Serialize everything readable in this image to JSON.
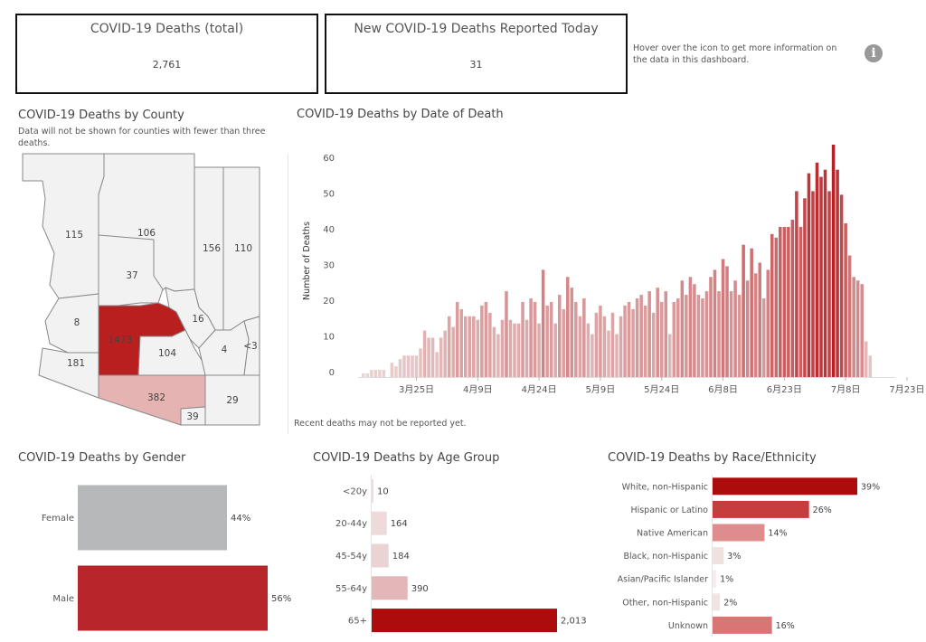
{
  "kpis": {
    "total_title": "COVID-19 Deaths (total)",
    "total_value": "2,761",
    "today_title": "New COVID-19 Deaths Reported Today",
    "today_value": "31"
  },
  "info": {
    "hover_text": "Hover over the icon to get more information on the data in this dashboard.",
    "icon": "info-icon",
    "icon_glyph": "i"
  },
  "county": {
    "title": "COVID-19 Deaths by County",
    "note": "Data will not be shown for counties with fewer than three deaths.",
    "labels": {
      "mohave": "115",
      "coconino": "106",
      "navajo": "156",
      "apache": "110",
      "yavapai": "37",
      "la_paz": "8",
      "maricopa": "1473",
      "gila": "16",
      "pinal": "104",
      "graham": "4",
      "greenlee": "<3",
      "yuma": "181",
      "pima": "382",
      "santa_cruz": "39",
      "cochise": "29"
    },
    "colors": {
      "maricopa": "#b82020",
      "pima": "#e6b3b3",
      "other": "#f2f2f2",
      "border": "#888888"
    }
  },
  "chart_data": [
    {
      "type": "bar",
      "title": "COVID-19 Deaths by Date of Death",
      "ylabel": "Number of Deaths",
      "ylim": [
        0,
        65
      ],
      "yticks": [
        "0",
        "10",
        "20",
        "30",
        "40",
        "50",
        "60"
      ],
      "xtick_labels": [
        "3月25日",
        "4月9日",
        "4月24日",
        "5月9日",
        "5月24日",
        "6月8日",
        "6月23日",
        "7月8日",
        "7月23日"
      ],
      "start_date": "3月12日",
      "values": [
        1,
        1,
        2,
        2,
        2,
        2,
        0,
        4,
        3,
        5,
        6,
        6,
        6,
        6,
        8,
        13,
        11,
        11,
        7,
        11,
        13,
        17,
        14,
        21,
        19,
        17,
        17,
        17,
        16,
        20,
        21,
        18,
        14,
        12,
        16,
        24,
        16,
        15,
        15,
        21,
        16,
        22,
        21,
        15,
        30,
        20,
        21,
        15,
        23,
        19,
        28,
        25,
        21,
        17,
        22,
        15,
        12,
        18,
        20,
        17,
        13,
        18,
        12,
        17,
        20,
        21,
        19,
        22,
        23,
        20,
        24,
        18,
        25,
        21,
        24,
        12,
        21,
        22,
        27,
        23,
        28,
        26,
        23,
        22,
        24,
        28,
        30,
        24,
        33,
        31,
        24,
        27,
        23,
        37,
        27,
        36,
        29,
        32,
        22,
        30,
        40,
        39,
        42,
        42,
        42,
        44,
        52,
        42,
        50,
        57,
        52,
        60,
        56,
        58,
        52,
        65,
        58,
        51,
        43,
        34,
        28,
        27,
        26,
        10,
        6
      ],
      "note": "Recent deaths may not be reported yet."
    },
    {
      "type": "bar",
      "orientation": "horizontal",
      "title": "COVID-19 Deaths by Gender",
      "categories": [
        "Female",
        "Male"
      ],
      "values": [
        44,
        56
      ],
      "labels": [
        "44%",
        "56%"
      ],
      "colors": [
        "#b6b8ba",
        "#b8252a"
      ]
    },
    {
      "type": "bar",
      "orientation": "horizontal",
      "title": "COVID-19 Deaths by Age Group",
      "categories": [
        "<20y",
        "20-44y",
        "45-54y",
        "55-64y",
        "65+"
      ],
      "values": [
        10,
        164,
        184,
        390,
        2013
      ],
      "labels": [
        "10",
        "164",
        "184",
        "390",
        "2,013"
      ],
      "colors": [
        "#efdcdc",
        "#eedada",
        "#ecd3d3",
        "#e3b7b7",
        "#ad0c0c"
      ]
    },
    {
      "type": "bar",
      "orientation": "horizontal",
      "title": "COVID-19 Deaths by Race/Ethnicity",
      "categories": [
        "White, non-Hispanic",
        "Hispanic or Latino",
        "Native American",
        "Black, non-Hispanic",
        "Asian/Pacific Islander",
        "Other, non-Hispanic",
        "Unknown"
      ],
      "values": [
        39,
        26,
        14,
        3,
        1,
        2,
        16
      ],
      "labels": [
        "39%",
        "26%",
        "14%",
        "3%",
        "1%",
        "2%",
        "16%"
      ],
      "colors": [
        "#ad0c0c",
        "#c53d3d",
        "#df8c8c",
        "#f1e0e0",
        "#f6ecec",
        "#f3e4e4",
        "#d87676"
      ]
    }
  ]
}
